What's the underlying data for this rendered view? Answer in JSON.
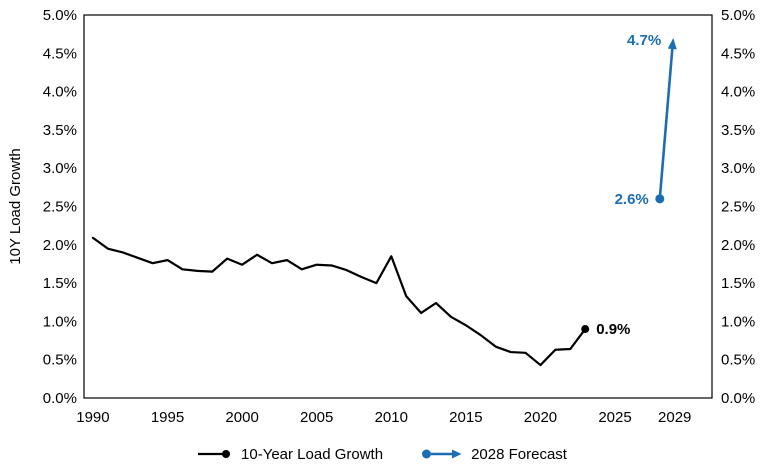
{
  "chart_data": {
    "type": "line",
    "title": "",
    "xlabel": "",
    "ylabel": "10Y Load Growth",
    "xlim": [
      1989.4,
      2031.5
    ],
    "ylim": [
      0,
      5
    ],
    "grid": false,
    "legend_position": "bottom",
    "y_ticks": [
      {
        "value": 0.0,
        "label": "0.0%"
      },
      {
        "value": 0.5,
        "label": "0.5%"
      },
      {
        "value": 1.0,
        "label": "1.0%"
      },
      {
        "value": 1.5,
        "label": "1.5%"
      },
      {
        "value": 2.0,
        "label": "2.0%"
      },
      {
        "value": 2.5,
        "label": "2.5%"
      },
      {
        "value": 3.0,
        "label": "3.0%"
      },
      {
        "value": 3.5,
        "label": "3.5%"
      },
      {
        "value": 4.0,
        "label": "4.0%"
      },
      {
        "value": 4.5,
        "label": "4.5%"
      },
      {
        "value": 5.0,
        "label": "5.0%"
      }
    ],
    "x_ticks": [
      {
        "year": 1990,
        "label": "1990"
      },
      {
        "year": 1995,
        "label": "1995"
      },
      {
        "year": 2000,
        "label": "2000"
      },
      {
        "year": 2005,
        "label": "2005"
      },
      {
        "year": 2010,
        "label": "2010"
      },
      {
        "year": 2015,
        "label": "2015"
      },
      {
        "year": 2020,
        "label": "2020"
      },
      {
        "year": 2025,
        "label": "2025"
      },
      {
        "year": 2029,
        "label": "2029"
      }
    ],
    "series": [
      {
        "name": "10-Year Load Growth",
        "color": "#000000",
        "x": [
          1990,
          1991,
          1992,
          1993,
          1994,
          1995,
          1996,
          1997,
          1998,
          1999,
          2000,
          2001,
          2002,
          2003,
          2004,
          2005,
          2006,
          2007,
          2008,
          2009,
          2010,
          2011,
          2012,
          2013,
          2014,
          2015,
          2016,
          2017,
          2018,
          2019,
          2020,
          2021,
          2022,
          2023
        ],
        "values": [
          2.09,
          1.95,
          1.9,
          1.83,
          1.76,
          1.8,
          1.68,
          1.66,
          1.65,
          1.82,
          1.74,
          1.87,
          1.76,
          1.8,
          1.68,
          1.74,
          1.73,
          1.67,
          1.58,
          1.5,
          1.85,
          1.33,
          1.11,
          1.24,
          1.06,
          0.95,
          0.82,
          0.67,
          0.6,
          0.59,
          0.43,
          0.63,
          0.64,
          0.9
        ],
        "end_label": "0.9%"
      },
      {
        "name": "2028 Forecast",
        "type": "arrow",
        "color": "#1B6DB4",
        "x": [
          2028,
          2028.9
        ],
        "values": [
          2.6,
          4.7
        ],
        "from_label": "2.6%",
        "to_label": "4.7%"
      }
    ]
  },
  "legend": {
    "items": [
      {
        "label": "10-Year Load Growth"
      },
      {
        "label": "2028 Forecast"
      }
    ]
  },
  "colors": {
    "history": "#000000",
    "forecast": "#1B6DB4",
    "axis_text": "#000000",
    "frame": "#000000",
    "background": "#ffffff"
  }
}
